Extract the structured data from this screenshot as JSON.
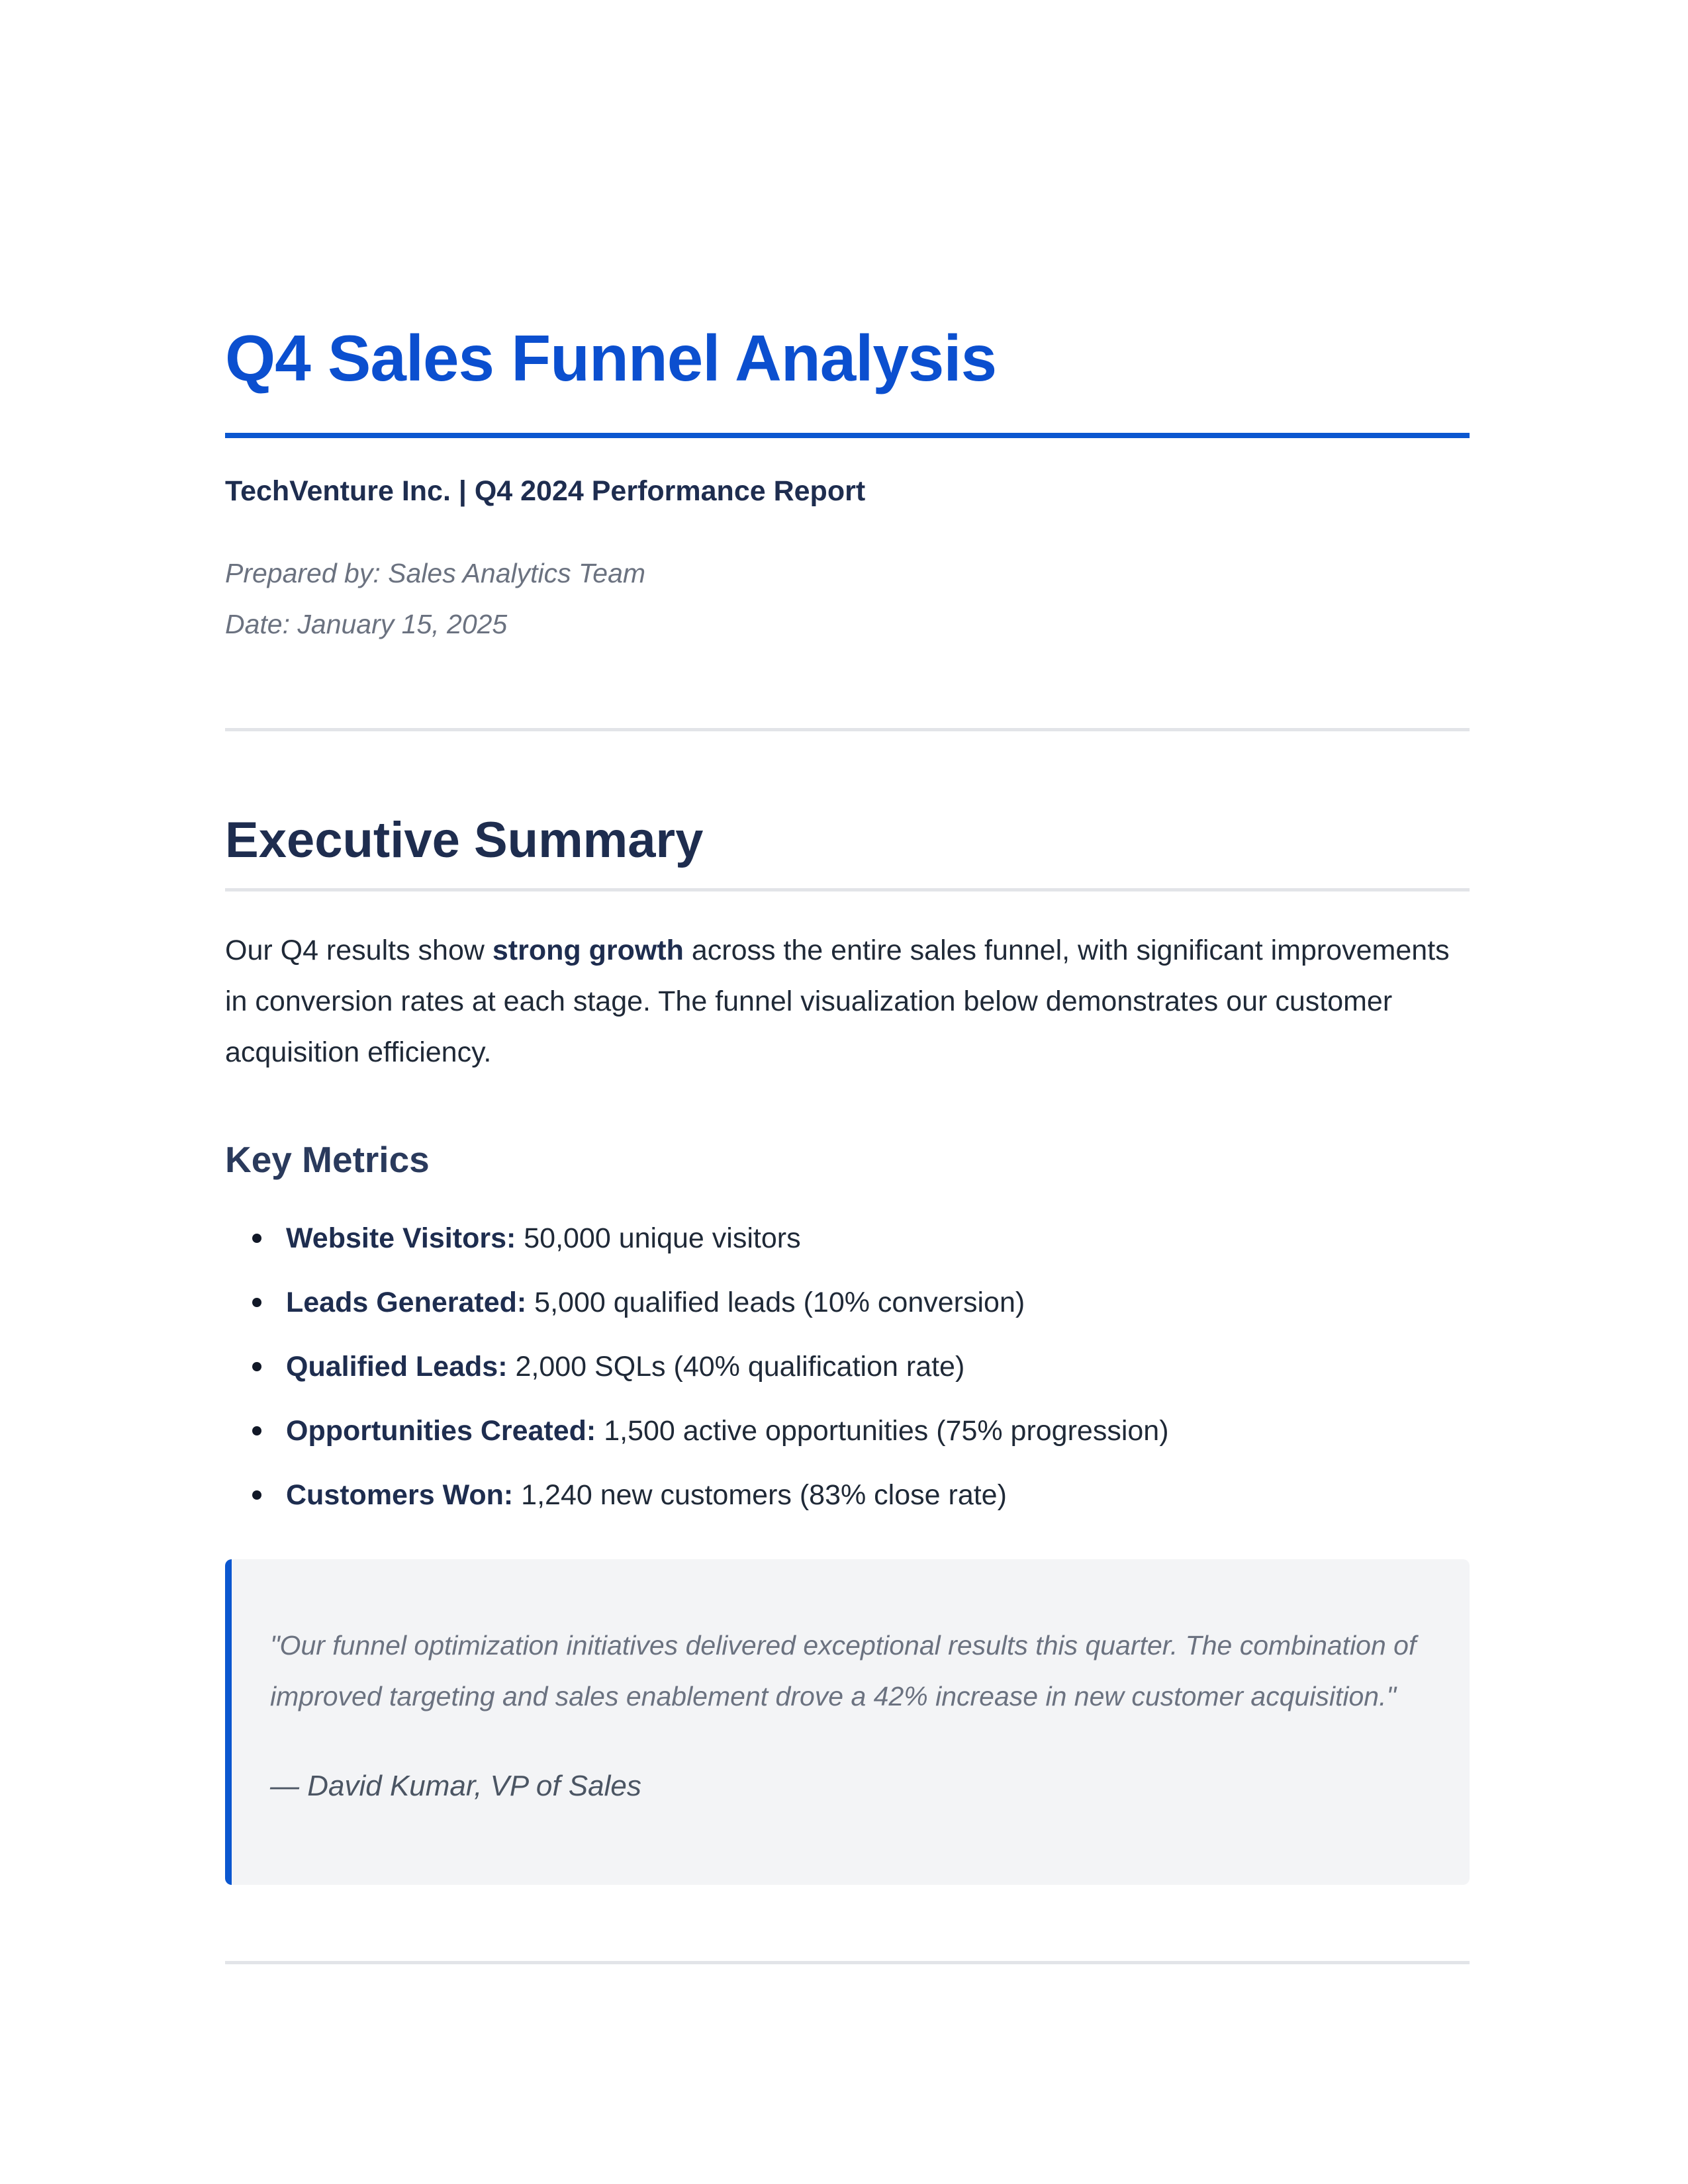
{
  "header": {
    "title": "Q4 Sales Funnel Analysis",
    "subtitle": "TechVenture Inc. | Q4 2024 Performance Report",
    "prepared_by": "Prepared by: Sales Analytics Team",
    "date": "Date: January 15, 2025"
  },
  "executive_summary": {
    "heading": "Executive Summary",
    "paragraph": {
      "before": "Our Q4 results show ",
      "emphasis": "strong growth",
      "after": " across the entire sales funnel, with significant improvements in conversion rates at each stage. The funnel visualization below demonstrates our customer acquisition efficiency."
    }
  },
  "key_metrics": {
    "heading": "Key Metrics",
    "items": [
      {
        "label": "Website Visitors:",
        "value": " 50,000 unique visitors"
      },
      {
        "label": "Leads Generated:",
        "value": " 5,000 qualified leads (10% conversion)"
      },
      {
        "label": "Qualified Leads:",
        "value": " 2,000 SQLs (40% qualification rate)"
      },
      {
        "label": "Opportunities Created:",
        "value": " 1,500 active opportunities (75% progression)"
      },
      {
        "label": "Customers Won:",
        "value": " 1,240 new customers (83% close rate)"
      }
    ]
  },
  "quote": {
    "text": "\"Our funnel optimization initiatives delivered exceptional results this quarter. The combination of improved targeting and sales enablement drove a 42% increase in new customer acquisition.\"",
    "author": "— David Kumar, VP of Sales"
  },
  "colors": {
    "accent": "#0b57d0",
    "heading": "#1e2d4f",
    "muted": "#6b7280",
    "quote_bg": "#f3f4f6",
    "rule": "#e2e4e8"
  }
}
